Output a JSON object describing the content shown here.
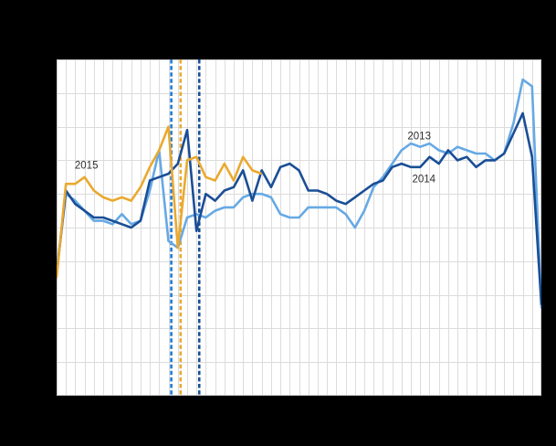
{
  "page": {
    "background_color": "#000000",
    "plot_background_color": "#ffffff",
    "grid_color": "#dcdcdc",
    "plot_border_color": "#c9c9c9",
    "label_color": "#2e2e2e",
    "visible_text_outside_plot": false
  },
  "chart_data": {
    "type": "line",
    "x_unit": "week_index",
    "x_count": 53,
    "x_range": [
      1,
      53
    ],
    "grid": {
      "vertical_divisions": 52,
      "horizontal_divisions": 10,
      "grid_on": true
    },
    "y_axis_labels_visible": false,
    "y_scale_note": "values measured in horizontal-gridline units, 0 = plot bottom, 10 = plot top",
    "ylim": [
      0,
      10
    ],
    "legend_position": "inline-annotations",
    "series": [
      {
        "name": "2013",
        "color": "#66a9e4",
        "values": [
          3.7,
          6.0,
          5.8,
          5.5,
          5.2,
          5.2,
          5.1,
          5.4,
          5.1,
          5.2,
          6.1,
          7.3,
          4.6,
          4.4,
          5.3,
          5.4,
          5.3,
          5.5,
          5.6,
          5.6,
          5.9,
          6.0,
          6.0,
          5.9,
          5.4,
          5.3,
          5.3,
          5.6,
          5.6,
          5.6,
          5.6,
          5.4,
          5.0,
          5.5,
          6.2,
          6.5,
          6.9,
          7.3,
          7.5,
          7.4,
          7.5,
          7.3,
          7.2,
          7.4,
          7.3,
          7.2,
          7.2,
          7.0,
          7.2,
          8.1,
          9.4,
          9.2,
          2.6
        ]
      },
      {
        "name": "2014",
        "color": "#1a4e96",
        "values": [
          3.6,
          6.1,
          5.7,
          5.5,
          5.3,
          5.3,
          5.2,
          5.1,
          5.0,
          5.2,
          6.4,
          6.5,
          6.6,
          6.9,
          7.9,
          4.9,
          6.0,
          5.8,
          6.1,
          6.2,
          6.7,
          5.8,
          6.7,
          6.2,
          6.8,
          6.9,
          6.7,
          6.1,
          6.1,
          6.0,
          5.8,
          5.7,
          5.9,
          6.1,
          6.3,
          6.4,
          6.8,
          6.9,
          6.8,
          6.8,
          7.1,
          6.9,
          7.3,
          7.0,
          7.1,
          6.8,
          7.0,
          7.0,
          7.2,
          7.8,
          8.4,
          7.1,
          2.7
        ]
      },
      {
        "name": "2015",
        "color": "#eaa92f",
        "values": [
          3.5,
          6.3,
          6.3,
          6.5,
          6.1,
          5.9,
          5.8,
          5.9,
          5.8,
          6.2,
          6.8,
          7.3,
          8.0,
          4.4,
          7.0,
          7.1,
          6.5,
          6.4,
          6.9,
          6.4,
          7.1,
          6.7,
          6.6
        ]
      }
    ],
    "event_markers": [
      {
        "style": "dashed-vertical",
        "color": "#1e7cd6",
        "week": 13.3
      },
      {
        "style": "dashed-vertical",
        "color": "#eaa92f",
        "week": 14.3
      },
      {
        "style": "dashed-vertical",
        "color": "#1a4e96",
        "week": 16.3
      }
    ],
    "annotations": [
      {
        "text": "2015",
        "week": 4.2,
        "value": 6.86
      },
      {
        "text": "2013",
        "week": 39.9,
        "value": 7.73
      },
      {
        "text": "2014",
        "week": 40.4,
        "value": 6.45
      }
    ]
  }
}
